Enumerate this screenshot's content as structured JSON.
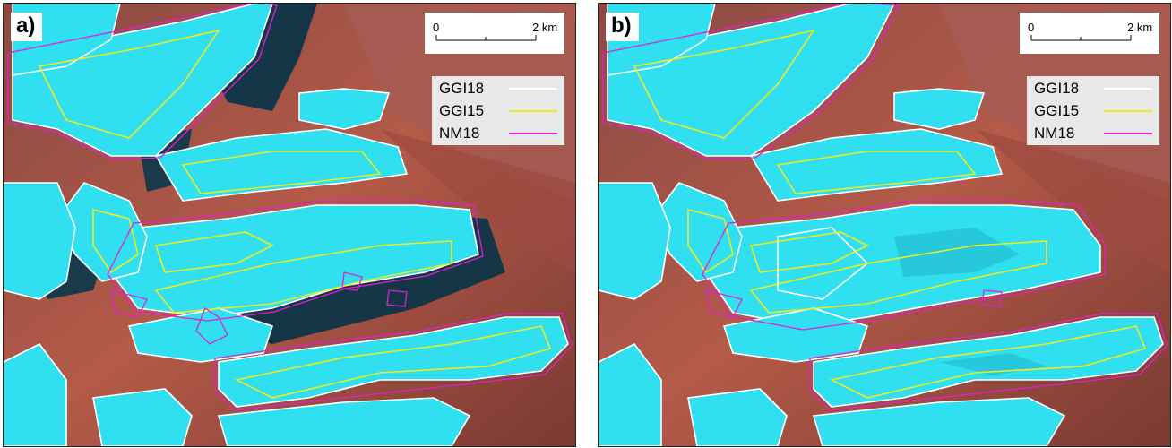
{
  "panels": [
    {
      "label": "a)"
    },
    {
      "label": "b)"
    }
  ],
  "scalebar": {
    "min_label": "0",
    "max_label": "2 km"
  },
  "legend": {
    "items": [
      {
        "name": "GGI18",
        "color": "#ffffff"
      },
      {
        "name": "GGI15",
        "color": "#ecec22"
      },
      {
        "name": "NM18",
        "color": "#e020d0"
      }
    ]
  },
  "colors": {
    "terrain": "#b45a48",
    "terrain_dark": "#5e2f2a",
    "ice": "#30e0f0",
    "shadow_ice": "#153646"
  }
}
